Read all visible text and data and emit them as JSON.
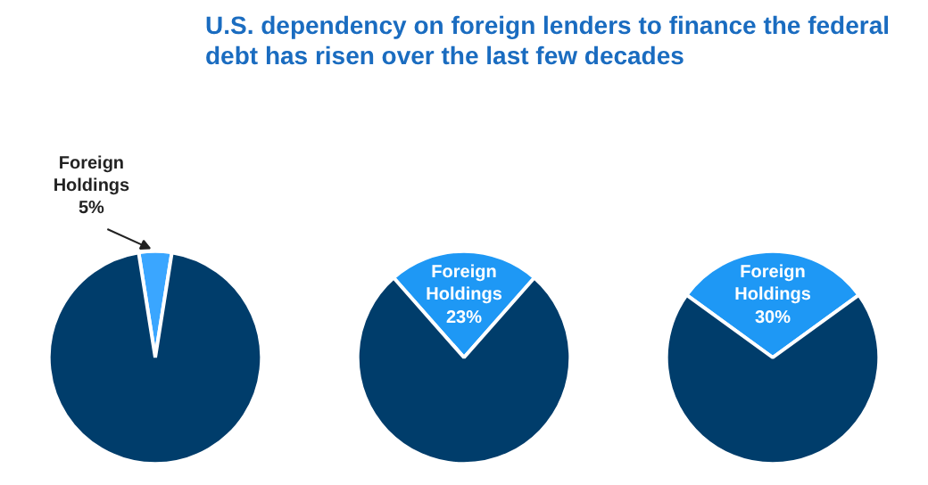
{
  "chart_data": [
    {
      "type": "pie",
      "title": "U.S. dependency on foreign lenders to finance the federal debt has risen over the last few decades",
      "categories": [
        "Foreign Holdings",
        null
      ],
      "values": [
        5,
        95
      ],
      "value_labels": [
        "5%",
        null
      ],
      "colors": [
        "#3aa6ff",
        "#003d6b"
      ]
    },
    {
      "type": "pie",
      "categories": [
        "Foreign Holdings",
        null
      ],
      "values": [
        23,
        77
      ],
      "value_labels": [
        "23%",
        null
      ],
      "colors": [
        "#1e98f5",
        "#003d6b"
      ]
    },
    {
      "type": "pie",
      "categories": [
        "Foreign Holdings",
        null
      ],
      "values": [
        30,
        70
      ],
      "value_labels": [
        "30%",
        null
      ],
      "colors": [
        "#1e98f5",
        "#003d6b"
      ]
    }
  ]
}
